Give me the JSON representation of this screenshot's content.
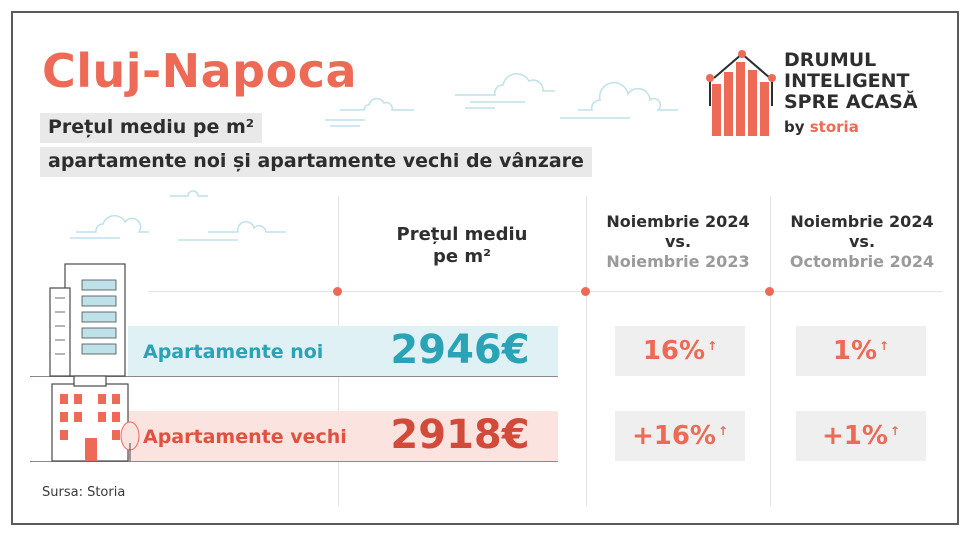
{
  "header": {
    "title": "Cluj-Napoca",
    "subtitle_line1": "Prețul mediu pe m²",
    "subtitle_line2": "apartamente noi și apartamente vechi de vânzare"
  },
  "logo": {
    "line1": "DRUMUL",
    "line2": "INTELIGENT",
    "line3": "SPRE ACASĂ",
    "by": "by",
    "brand": "storia"
  },
  "columns": {
    "price_head_line1": "Prețul mediu",
    "price_head_line2": "pe m²",
    "yoy_line1": "Noiembrie 2024",
    "yoy_line2": "vs.",
    "yoy_line3": "Noiembrie 2023",
    "mom_line1": "Noiembrie 2024",
    "mom_line2": "vs.",
    "mom_line3": "Octombrie 2024"
  },
  "rows": [
    {
      "label": "Apartamente noi",
      "price": "2946€",
      "yoy": "16%",
      "mom": "1%"
    },
    {
      "label": "Apartamente vechi",
      "price": "2918€",
      "yoy": "+16%",
      "mom": "+1%"
    }
  ],
  "source": "Sursa: Storia",
  "colors": {
    "accent": "#ec6a56",
    "new": "#2aa3b6",
    "old": "#d24a3a"
  }
}
